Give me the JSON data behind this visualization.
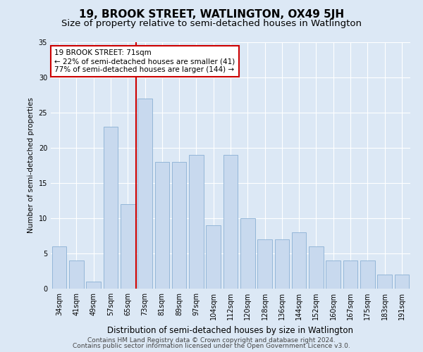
{
  "title": "19, BROOK STREET, WATLINGTON, OX49 5JH",
  "subtitle": "Size of property relative to semi-detached houses in Watlington",
  "xlabel": "Distribution of semi-detached houses by size in Watlington",
  "ylabel": "Number of semi-detached properties",
  "categories": [
    "34sqm",
    "41sqm",
    "49sqm",
    "57sqm",
    "65sqm",
    "73sqm",
    "81sqm",
    "89sqm",
    "97sqm",
    "104sqm",
    "112sqm",
    "120sqm",
    "128sqm",
    "136sqm",
    "144sqm",
    "152sqm",
    "160sqm",
    "167sqm",
    "175sqm",
    "183sqm",
    "191sqm"
  ],
  "values": [
    6,
    4,
    1,
    23,
    12,
    27,
    18,
    18,
    19,
    9,
    19,
    10,
    7,
    7,
    8,
    6,
    4,
    4,
    4,
    2,
    2
  ],
  "bar_color": "#c8d9ee",
  "bar_edge_color": "#8ab0d4",
  "highlight_line_color": "#cc0000",
  "annotation_title": "19 BROOK STREET: 71sqm",
  "annotation_line1": "← 22% of semi-detached houses are smaller (41)",
  "annotation_line2": "77% of semi-detached houses are larger (144) →",
  "annotation_box_facecolor": "#ffffff",
  "annotation_box_edgecolor": "#cc0000",
  "ylim": [
    0,
    35
  ],
  "yticks": [
    0,
    5,
    10,
    15,
    20,
    25,
    30,
    35
  ],
  "bg_color": "#dce8f5",
  "plot_bg_color": "#dce8f5",
  "grid_color": "#ffffff",
  "title_fontsize": 11,
  "subtitle_fontsize": 9.5,
  "xlabel_fontsize": 8.5,
  "ylabel_fontsize": 7.5,
  "tick_fontsize": 7,
  "footer_fontsize": 6.5,
  "annotation_fontsize": 7.5,
  "footer1": "Contains HM Land Registry data © Crown copyright and database right 2024.",
  "footer2": "Contains public sector information licensed under the Open Government Licence v3.0."
}
